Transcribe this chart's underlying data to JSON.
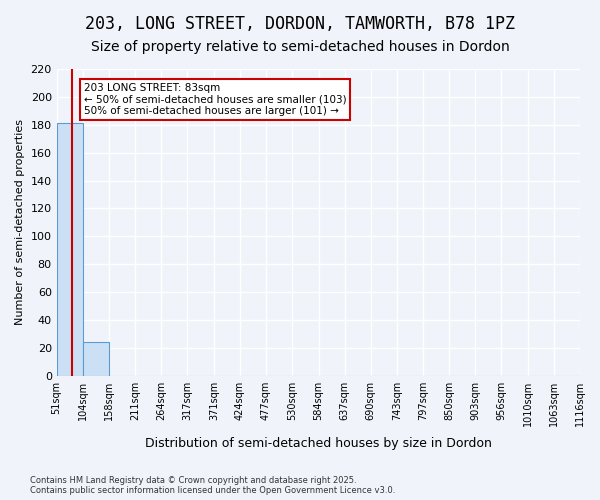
{
  "title": "203, LONG STREET, DORDON, TAMWORTH, B78 1PZ",
  "subtitle": "Size of property relative to semi-detached houses in Dordon",
  "xlabel": "Distribution of semi-detached houses by size in Dordon",
  "ylabel": "Number of semi-detached properties",
  "footnote": "Contains HM Land Registry data © Crown copyright and database right 2025.\nContains public sector information licensed under the Open Government Licence v3.0.",
  "bin_edges": [
    51,
    104,
    158,
    211,
    264,
    317,
    371,
    424,
    477,
    530,
    584,
    637,
    690,
    743,
    797,
    850,
    903,
    956,
    1010,
    1063,
    1116
  ],
  "bar_heights": [
    181,
    24,
    0,
    0,
    0,
    0,
    0,
    0,
    0,
    0,
    0,
    0,
    0,
    0,
    0,
    0,
    0,
    0,
    0,
    0
  ],
  "bar_color": "#cce0f5",
  "bar_edge_color": "#5b9bd5",
  "property_size": 83,
  "property_label": "203 LONG STREET: 83sqm",
  "smaller_count": 103,
  "larger_count": 101,
  "annotation_box_color": "#ffffff",
  "annotation_box_edge": "#cc0000",
  "vline_color": "#cc0000",
  "ylim": [
    0,
    220
  ],
  "yticks": [
    0,
    20,
    40,
    60,
    80,
    100,
    120,
    140,
    160,
    180,
    200,
    220
  ],
  "background_color": "#f0f4fa",
  "axes_background": "#f0f4fa",
  "grid_color": "#ffffff",
  "title_fontsize": 12,
  "subtitle_fontsize": 10
}
